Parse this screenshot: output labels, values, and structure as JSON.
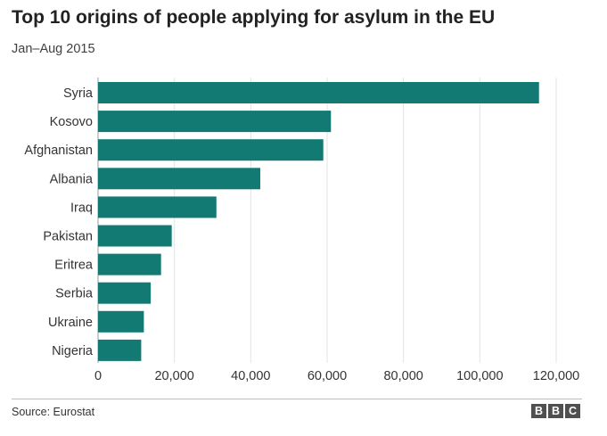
{
  "title": "Top 10 origins of people applying for asylum in the EU",
  "subtitle": "Jan–Aug 2015",
  "source": "Source: Eurostat",
  "logo": {
    "letters": [
      "B",
      "B",
      "C"
    ]
  },
  "colors": {
    "bar": "#127a73",
    "grid": "#e3e3e3",
    "axis": "#999999"
  },
  "chart_data": {
    "type": "bar",
    "orientation": "horizontal",
    "title": "Top 10 origins of people applying for asylum in the EU",
    "subtitle": "Jan–Aug 2015",
    "categories": [
      "Syria",
      "Kosovo",
      "Afghanistan",
      "Albania",
      "Iraq",
      "Pakistan",
      "Eritrea",
      "Serbia",
      "Ukraine",
      "Nigeria"
    ],
    "values": [
      115500,
      61000,
      59000,
      42500,
      31000,
      19300,
      16500,
      13800,
      12000,
      11300
    ],
    "xlim": [
      0,
      120000
    ],
    "ticks": [
      0,
      20000,
      40000,
      60000,
      80000,
      100000,
      120000
    ],
    "tick_labels": [
      "0",
      "20,000",
      "40,000",
      "60,000",
      "80,000",
      "100,000",
      "120,000"
    ],
    "xlabel": "",
    "ylabel": "",
    "grid": "vertical",
    "legend": "none"
  }
}
